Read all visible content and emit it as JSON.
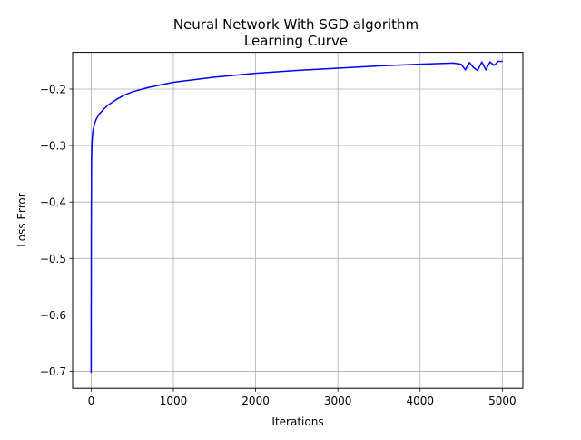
{
  "chart_data": {
    "type": "line",
    "title_line1": "Neural Network With SGD algorithm",
    "title_line2": "Learning Curve",
    "xlabel": "Iterations",
    "ylabel": "Loss Error",
    "xlim": [
      -225,
      5250
    ],
    "ylim": [
      -0.73,
      -0.135
    ],
    "xticks": [
      0,
      1000,
      2000,
      3000,
      4000,
      5000
    ],
    "xtick_labels": [
      "0",
      "1000",
      "2000",
      "3000",
      "4000",
      "5000"
    ],
    "yticks": [
      -0.7,
      -0.6,
      -0.5,
      -0.4,
      -0.3,
      -0.2
    ],
    "ytick_labels": [
      "−0.7",
      "−0.6",
      "−0.5",
      "−0.4",
      "−0.3",
      "−0.2"
    ],
    "grid": true,
    "line_color": "#0000ff",
    "series": [
      {
        "x": [
          0,
          2,
          5,
          10,
          20,
          40,
          60,
          100,
          150,
          200,
          300,
          400,
          500,
          700,
          1000,
          1500,
          2000,
          2500,
          3000,
          3500,
          4000,
          4200,
          4400,
          4500,
          4550,
          4600,
          4650,
          4700,
          4750,
          4800,
          4850,
          4900,
          4950,
          5000
        ],
        "y": [
          -0.702,
          -0.45,
          -0.33,
          -0.295,
          -0.276,
          -0.262,
          -0.254,
          -0.244,
          -0.236,
          -0.229,
          -0.219,
          -0.211,
          -0.205,
          -0.197,
          -0.188,
          -0.179,
          -0.172,
          -0.167,
          -0.163,
          -0.159,
          -0.156,
          -0.155,
          -0.154,
          -0.156,
          -0.166,
          -0.153,
          -0.162,
          -0.167,
          -0.152,
          -0.166,
          -0.152,
          -0.158,
          -0.151,
          -0.151
        ]
      }
    ]
  }
}
